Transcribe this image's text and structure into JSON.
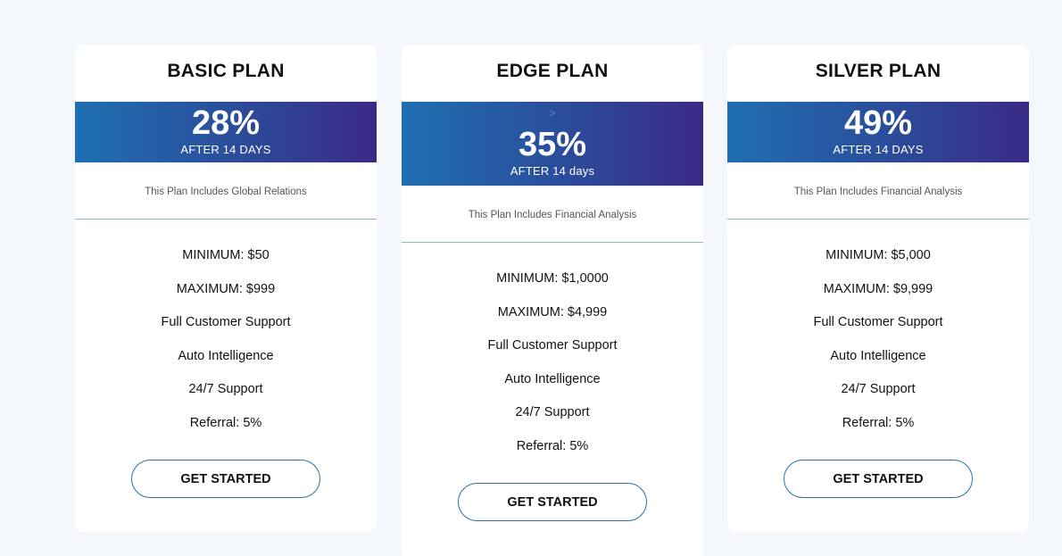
{
  "plans": [
    {
      "title": "BASIC PLAN",
      "rate": "28%",
      "period": "AFTER 14 DAYS",
      "marker": "",
      "includes": "This Plan Includes Global Relations",
      "features": [
        "MINIMUM: $50",
        "MAXIMUM: $999",
        "Full Customer Support",
        "Auto Intelligence",
        "24/7 Support",
        "Referral: 5%"
      ],
      "button": "GET STARTED"
    },
    {
      "title": "EDGE PLAN",
      "rate": "35%",
      "period": "AFTER 14 days",
      "marker": ">",
      "includes": "This Plan Includes Financial Analysis",
      "features": [
        "MINIMUM: $1,0000",
        "MAXIMUM: $4,999",
        "Full Customer Support",
        "Auto Intelligence",
        "24/7 Support",
        "Referral: 5%"
      ],
      "button": "GET STARTED"
    },
    {
      "title": "SILVER PLAN",
      "rate": "49%",
      "period": "AFTER 14 DAYS",
      "marker": "",
      "includes": "This Plan Includes Financial Analysis",
      "features": [
        "MINIMUM: $5,000",
        "MAXIMUM: $9,999",
        "Full Customer Support",
        "Auto Intelligence",
        "24/7 Support",
        "Referral: 5%"
      ],
      "button": "GET STARTED"
    }
  ],
  "colors": {
    "page_background": "#f4f8fd",
    "card_background": "#ffffff",
    "band_gradient_start": "#1f6fb2",
    "band_gradient_end": "#3a2a86",
    "button_border": "#2a70a8",
    "divider": "#8fb3c9"
  }
}
